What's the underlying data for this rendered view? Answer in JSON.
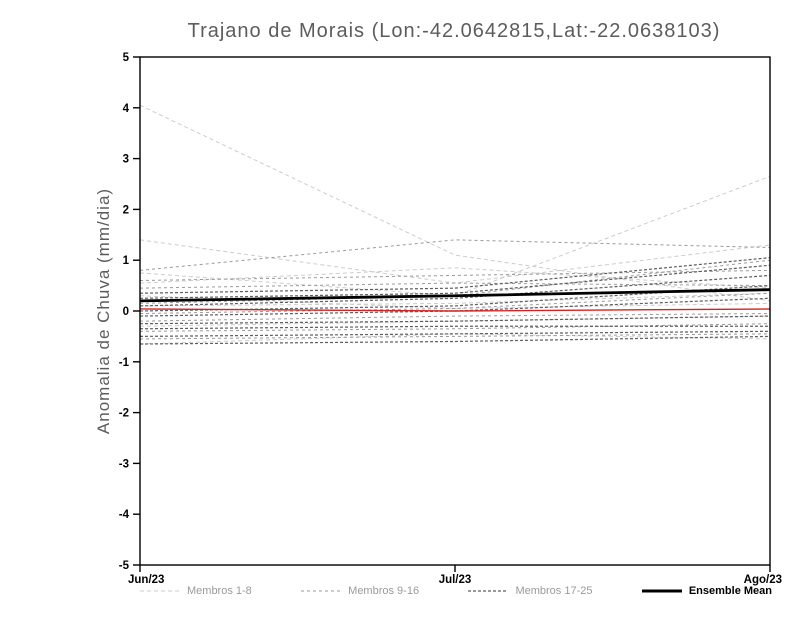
{
  "title": "Trajano de Morais (Lon:-42.0642815,Lat:-22.0638103)",
  "chart_data": {
    "type": "line",
    "title": "Trajano de Morais (Lon:-42.0642815,Lat:-22.0638103)",
    "ylabel": "Anomalia de Chuva (mm/dia)",
    "x": [
      "Jun/23",
      "Jul/23",
      "Ago/23"
    ],
    "ylim": [
      -5,
      5
    ],
    "yticks": [
      -5,
      -4,
      -3,
      -2,
      -1,
      0,
      1,
      2,
      3,
      4,
      5
    ],
    "grid": false,
    "legend_position": "bottom",
    "groups": [
      {
        "name": "Membros 1-8",
        "color": "#cccccc",
        "dash": "4 3",
        "width": 1,
        "members": [
          [
            4.05,
            1.1,
            0.2
          ],
          [
            1.4,
            0.55,
            1.3
          ],
          [
            0.75,
            0.3,
            2.65
          ],
          [
            0.55,
            0.85,
            0.45
          ],
          [
            0.1,
            0.15,
            0.35
          ],
          [
            -0.3,
            -0.2,
            -0.1
          ],
          [
            -0.65,
            -0.45,
            -0.55
          ],
          [
            0.3,
            0.05,
            0.15
          ]
        ]
      },
      {
        "name": "Membros 9-16",
        "color": "#9a9a9a",
        "dash": "3 3",
        "width": 1,
        "members": [
          [
            0.8,
            1.4,
            1.25
          ],
          [
            0.6,
            0.7,
            0.8
          ],
          [
            0.45,
            0.55,
            0.5
          ],
          [
            0.15,
            0.3,
            1.0
          ],
          [
            -0.05,
            0.05,
            0.35
          ],
          [
            -0.2,
            -0.1,
            -0.05
          ],
          [
            -0.4,
            -0.35,
            -0.25
          ],
          [
            -0.55,
            -0.5,
            -0.45
          ]
        ]
      },
      {
        "name": "Membros 17-25",
        "color": "#5e5e5e",
        "dash": "3 2",
        "width": 1.2,
        "members": [
          [
            0.35,
            0.45,
            1.05
          ],
          [
            0.25,
            0.35,
            0.9
          ],
          [
            0.1,
            0.25,
            0.7
          ],
          [
            0.0,
            0.1,
            0.5
          ],
          [
            -0.1,
            0.0,
            0.25
          ],
          [
            -0.25,
            -0.2,
            -0.1
          ],
          [
            -0.35,
            -0.3,
            -0.3
          ],
          [
            -0.5,
            -0.45,
            -0.4
          ],
          [
            -0.65,
            -0.6,
            -0.5
          ]
        ]
      }
    ],
    "reference_line": {
      "name": "zero-reference",
      "color": "#d42222",
      "width": 1.4,
      "values": [
        0.04,
        0.0,
        0.04
      ]
    },
    "ensemble_mean": {
      "name": "Ensemble Mean",
      "color": "#000000",
      "width": 2.8,
      "values": [
        0.2,
        0.3,
        0.42
      ]
    },
    "legend": [
      {
        "label": "Membros 1-8",
        "color": "#cccccc",
        "dash": "4 3",
        "width": 1,
        "kind": "member"
      },
      {
        "label": "Membros 9-16",
        "color": "#9a9a9a",
        "dash": "3 3",
        "width": 1,
        "kind": "member"
      },
      {
        "label": "Membros 17-25",
        "color": "#5e5e5e",
        "dash": "3 2",
        "width": 1.2,
        "kind": "member"
      },
      {
        "label": "Ensemble Mean",
        "color": "#000000",
        "dash": "",
        "width": 3,
        "kind": "mean"
      }
    ]
  }
}
